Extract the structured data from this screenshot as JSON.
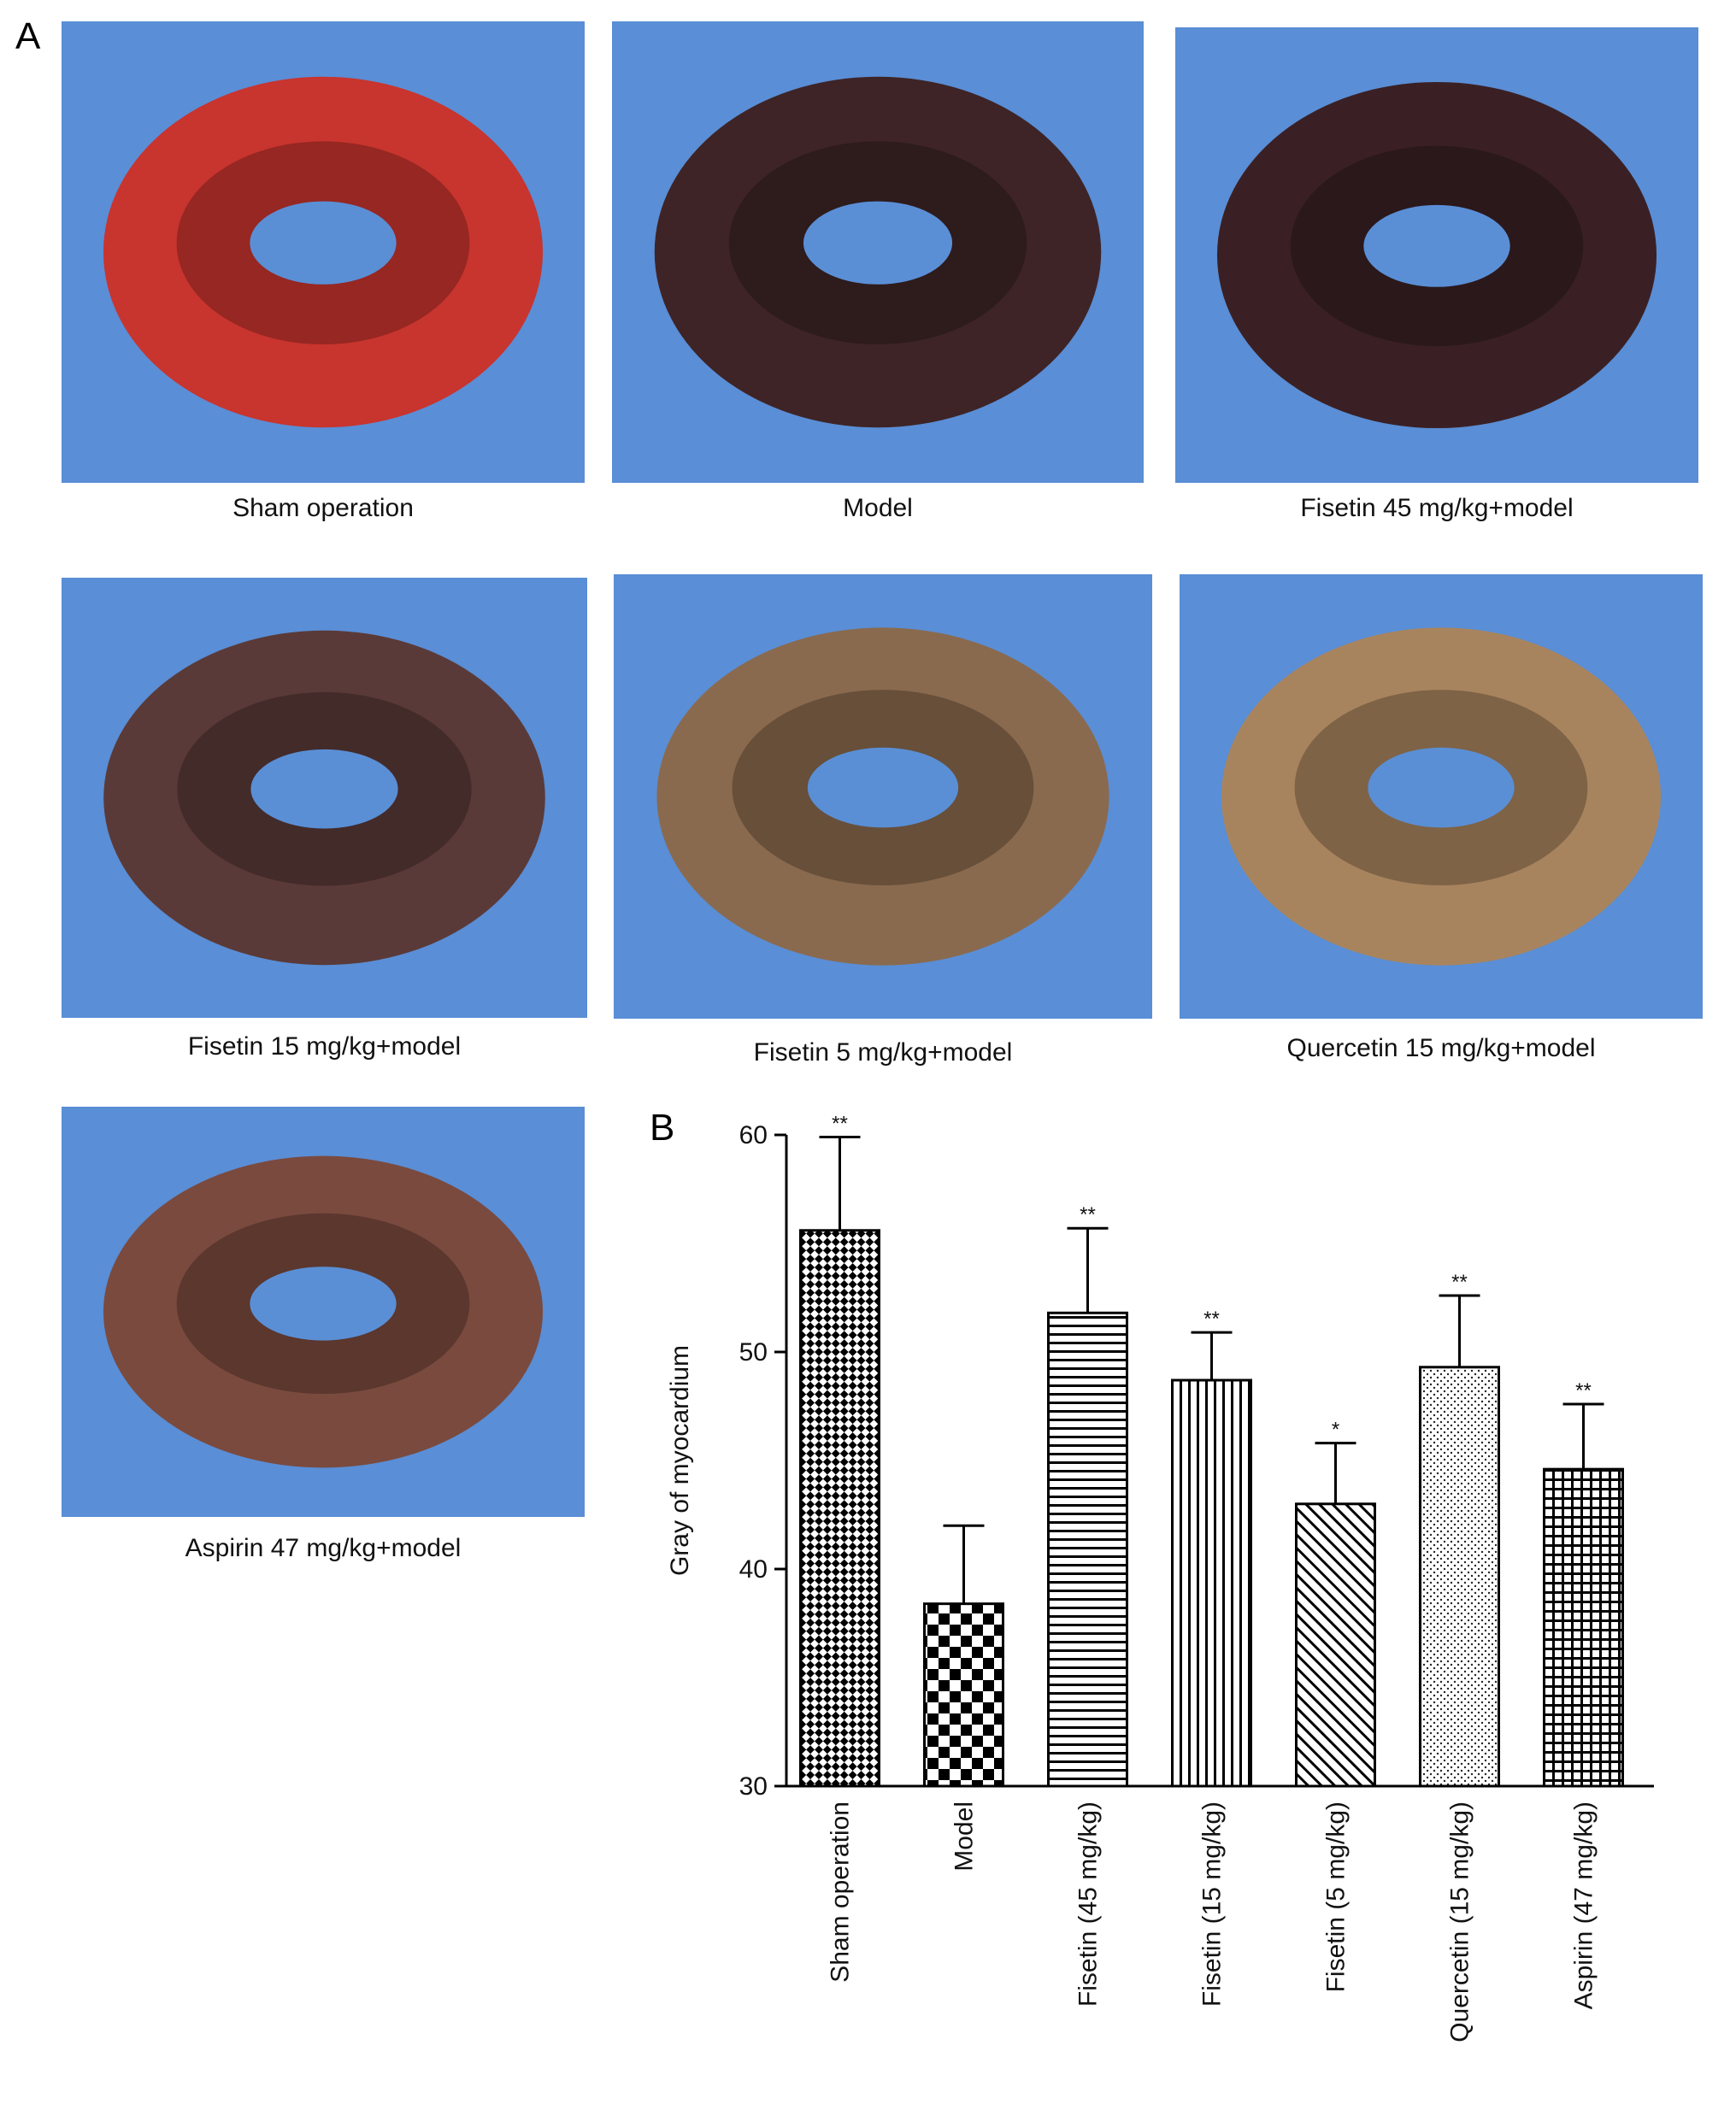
{
  "panel_labels": {
    "a": "A",
    "b": "B"
  },
  "photos": [
    {
      "caption": "Sham operation",
      "tissue": "#c8342e",
      "lumen": "#5a8fd6"
    },
    {
      "caption": "Model",
      "tissue": "#3e2426",
      "lumen": "#5a8fd6"
    },
    {
      "caption": "Fisetin 45 mg/kg+model",
      "tissue": "#3a2024",
      "lumen": "#5a8fd6"
    },
    {
      "caption": "Fisetin 15 mg/kg+model",
      "tissue": "#5a3a38",
      "lumen": "#5a8fd6"
    },
    {
      "caption": "Fisetin 5 mg/kg+model",
      "tissue": "#8a6a4e",
      "lumen": "#5a8fd6"
    },
    {
      "caption": "Quercetin 15 mg/kg+model",
      "tissue": "#a8845e",
      "lumen": "#5a8fd6"
    },
    {
      "caption": "Aspirin 47 mg/kg+model",
      "tissue": "#7a4a3e",
      "lumen": "#5a8fd6"
    }
  ],
  "chart_data": {
    "type": "bar",
    "ylabel": "Gray of myocardium",
    "xlabel": "",
    "ylim": [
      30,
      60
    ],
    "yticks": [
      30,
      40,
      50,
      60
    ],
    "categories": [
      "Sham operation",
      "Model",
      "Fisetin (45 mg/kg)",
      "Fisetin (15 mg/kg)",
      "Fisetin (5 mg/kg)",
      "Quercetin (15 mg/kg)",
      "Aspirin (47 mg/kg)"
    ],
    "values": [
      55.6,
      38.4,
      51.8,
      48.7,
      43.0,
      49.3,
      44.6
    ],
    "errors": [
      4.3,
      3.6,
      3.9,
      2.2,
      2.8,
      3.3,
      3.0
    ],
    "significance": [
      "**",
      "",
      "**",
      "**",
      "*",
      "**",
      "**"
    ],
    "patterns": [
      "diamond-check",
      "checker",
      "horizontal",
      "vertical",
      "diagonal",
      "dots",
      "grid"
    ]
  }
}
